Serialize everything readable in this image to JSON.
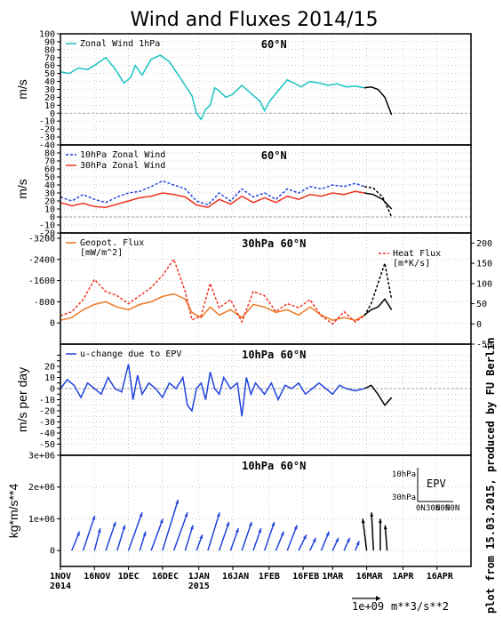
{
  "page": {
    "title": "Wind and Fluxes 2014/15",
    "credit": "plot from 15.03.2015, produced by FU Berlin"
  },
  "x_axis": {
    "ticks": [
      {
        "day": 0,
        "label": "1NOV",
        "label2": "2014"
      },
      {
        "day": 15,
        "label": "16NOV"
      },
      {
        "day": 30,
        "label": "1DEC"
      },
      {
        "day": 45,
        "label": "16DEC"
      },
      {
        "day": 61,
        "label": "1JAN",
        "label2": "2015"
      },
      {
        "day": 76,
        "label": "16JAN"
      },
      {
        "day": 92,
        "label": "1FEB"
      },
      {
        "day": 107,
        "label": "16FEB"
      },
      {
        "day": 120,
        "label": "1MAR"
      },
      {
        "day": 135,
        "label": "16MAR"
      },
      {
        "day": 151,
        "label": "1APR"
      },
      {
        "day": 166,
        "label": "16APR"
      }
    ],
    "range": [
      0,
      181
    ],
    "forecast_start_day": 134
  },
  "chart_data": [
    {
      "type": "line",
      "panel_label": "60°N",
      "ylabel": "m/s",
      "ylim": [
        -40,
        100
      ],
      "yticks": [
        -40,
        -30,
        -20,
        -10,
        0,
        10,
        20,
        30,
        40,
        50,
        60,
        70,
        80,
        90,
        100
      ],
      "ref_lines": [
        0
      ],
      "series": [
        {
          "name": "Zonal Wind 1hPa",
          "color": "#19c2c2",
          "x": [
            0,
            4,
            8,
            12,
            16,
            20,
            24,
            28,
            31,
            33,
            36,
            40,
            44,
            48,
            52,
            55,
            58,
            60,
            62,
            64,
            66,
            68,
            70,
            73,
            76,
            80,
            84,
            88,
            90,
            92,
            95,
            98,
            100,
            103,
            106,
            110,
            114,
            118,
            122,
            126,
            130,
            134
          ],
          "y": [
            52,
            50,
            57,
            55,
            62,
            70,
            56,
            38,
            45,
            60,
            48,
            68,
            73,
            65,
            48,
            35,
            22,
            0,
            -8,
            5,
            10,
            32,
            28,
            20,
            24,
            35,
            25,
            15,
            3,
            14,
            25,
            35,
            42,
            38,
            33,
            40,
            38,
            35,
            37,
            33,
            34,
            32
          ]
        },
        {
          "name": "",
          "color": "#000000",
          "dashed": false,
          "x": [
            134,
            137,
            140,
            143,
            146
          ],
          "y": [
            32,
            33,
            30,
            20,
            -2
          ]
        }
      ]
    },
    {
      "type": "line",
      "panel_label": "60°N",
      "ylabel": "m/s",
      "ylim": [
        -20,
        90
      ],
      "yticks": [
        -20,
        -10,
        0,
        10,
        20,
        30,
        40,
        50,
        60,
        70,
        80
      ],
      "ref_lines": [
        0
      ],
      "series": [
        {
          "name": "10hPa Zonal Wind",
          "color": "#2244dd",
          "dashed": true,
          "x": [
            0,
            5,
            10,
            15,
            20,
            25,
            30,
            35,
            40,
            45,
            50,
            55,
            60,
            65,
            70,
            75,
            80,
            85,
            90,
            95,
            100,
            105,
            110,
            115,
            120,
            125,
            130,
            134
          ],
          "y": [
            25,
            20,
            28,
            22,
            18,
            25,
            30,
            32,
            38,
            45,
            40,
            35,
            20,
            15,
            30,
            20,
            35,
            25,
            30,
            22,
            35,
            30,
            38,
            35,
            40,
            38,
            42,
            38
          ]
        },
        {
          "name": "30hPa Zonal Wind",
          "color": "#ee3322",
          "dashed": false,
          "x": [
            0,
            5,
            10,
            15,
            20,
            25,
            30,
            35,
            40,
            45,
            50,
            55,
            60,
            65,
            70,
            75,
            80,
            85,
            90,
            95,
            100,
            105,
            110,
            115,
            120,
            125,
            130,
            134
          ],
          "y": [
            18,
            14,
            17,
            13,
            12,
            16,
            20,
            24,
            26,
            30,
            28,
            25,
            15,
            12,
            22,
            16,
            26,
            18,
            24,
            18,
            26,
            22,
            28,
            26,
            30,
            28,
            32,
            30
          ]
        },
        {
          "name": "",
          "color": "#000000",
          "dashed": true,
          "x": [
            134,
            138,
            142,
            146
          ],
          "y": [
            38,
            36,
            25,
            0
          ]
        },
        {
          "name": "",
          "color": "#000000",
          "dashed": false,
          "x": [
            134,
            138,
            142,
            146
          ],
          "y": [
            30,
            28,
            22,
            10
          ]
        }
      ]
    },
    {
      "type": "line",
      "panel_label": "30hPa 60°N",
      "ylabel": "",
      "ylim": [
        -3400,
        800
      ],
      "yticks": [
        -3200,
        -2400,
        -1600,
        -800,
        0
      ],
      "yinvert": true,
      "y2lim": [
        -50,
        225
      ],
      "y2ticks": [
        -50,
        0,
        50,
        100,
        150,
        200
      ],
      "series": [
        {
          "name": "Geopot. Flux",
          "unit": "[mW/m^2]",
          "color": "#ee7722",
          "dashed": false,
          "x": [
            0,
            5,
            10,
            15,
            20,
            25,
            30,
            35,
            40,
            45,
            50,
            55,
            58,
            62,
            66,
            70,
            75,
            80,
            85,
            90,
            95,
            100,
            105,
            110,
            115,
            120,
            125,
            130,
            134
          ],
          "y": [
            -100,
            -200,
            -500,
            -700,
            -800,
            -600,
            -500,
            -700,
            -800,
            -1000,
            -1100,
            -900,
            -400,
            -200,
            -600,
            -300,
            -500,
            -200,
            -700,
            -600,
            -400,
            -500,
            -300,
            -600,
            -300,
            -100,
            -200,
            -100,
            -300
          ]
        },
        {
          "name": "Heat Flux",
          "unit": "[m*K/s]",
          "color": "#ee3322",
          "dashed": true,
          "x": [
            0,
            5,
            10,
            15,
            20,
            25,
            30,
            35,
            40,
            45,
            50,
            55,
            58,
            62,
            66,
            70,
            75,
            80,
            85,
            90,
            95,
            100,
            105,
            110,
            115,
            120,
            125,
            130,
            134
          ],
          "y": [
            20,
            30,
            60,
            110,
            80,
            70,
            50,
            70,
            90,
            120,
            160,
            80,
            10,
            20,
            100,
            40,
            60,
            5,
            80,
            70,
            30,
            50,
            40,
            60,
            20,
            0,
            30,
            5,
            20
          ]
        },
        {
          "name": "",
          "color": "#000000",
          "dashed": false,
          "x": [
            134,
            137,
            140,
            143,
            146
          ],
          "y": [
            -300,
            -500,
            -600,
            -900,
            -500
          ]
        },
        {
          "name": "",
          "color": "#000000",
          "dashed": true,
          "x": [
            134,
            137,
            140,
            143,
            146
          ],
          "y": [
            20,
            50,
            100,
            150,
            60
          ]
        }
      ]
    },
    {
      "type": "line",
      "panel_label": "10hPa 60°N",
      "ylabel": "m/s per day",
      "ylim": [
        -60,
        40
      ],
      "yticks": [
        -50,
        -45,
        -40,
        -35,
        -30,
        -25,
        -20,
        -15,
        -10,
        -5,
        0,
        5,
        10,
        15,
        20,
        25,
        30
      ],
      "ytick_labels": [
        -50,
        -40,
        -30,
        -20,
        -10,
        0,
        10,
        20
      ],
      "ref_lines": [
        0
      ],
      "series": [
        {
          "name": "u-change due to EPV",
          "color": "#2244dd",
          "dashed": false,
          "x": [
            0,
            3,
            6,
            9,
            12,
            15,
            18,
            21,
            24,
            27,
            30,
            32,
            34,
            36,
            39,
            42,
            45,
            48,
            51,
            54,
            56,
            58,
            60,
            62,
            64,
            66,
            68,
            70,
            72,
            75,
            78,
            80,
            82,
            84,
            86,
            88,
            90,
            93,
            96,
            99,
            102,
            105,
            108,
            111,
            114,
            117,
            120,
            123,
            126,
            130,
            134
          ],
          "y": [
            0,
            8,
            3,
            -8,
            5,
            0,
            -5,
            10,
            0,
            -3,
            22,
            -10,
            12,
            -5,
            5,
            0,
            -8,
            5,
            0,
            10,
            -15,
            -20,
            0,
            5,
            -10,
            15,
            0,
            -5,
            10,
            0,
            5,
            -25,
            10,
            -5,
            5,
            0,
            -5,
            5,
            -10,
            3,
            0,
            5,
            -5,
            0,
            5,
            0,
            -5,
            3,
            0,
            -2,
            0
          ]
        },
        {
          "name": "",
          "color": "#000000",
          "dashed": false,
          "x": [
            134,
            137,
            140,
            143,
            146
          ],
          "y": [
            0,
            3,
            -5,
            -15,
            -8
          ]
        }
      ]
    },
    {
      "type": "vector",
      "panel_label": "10hPa 60°N",
      "ylabel": "kg*m/s**4",
      "ylim": [
        -500000,
        3000000
      ],
      "yticks": [
        0,
        1000000,
        2000000,
        3000000
      ],
      "ytick_labels": [
        "0",
        "1e+06",
        "2e+06",
        "3e+06"
      ],
      "vector_scale_label": "1e+09",
      "vector_scale_unit": "m**3/s**2",
      "inset": {
        "title": "EPV",
        "y_labels": [
          "10hPa",
          "30hPa"
        ],
        "x_labels": [
          "0N",
          "30N",
          "60N",
          "90N"
        ]
      },
      "vectors": [
        {
          "day": 5,
          "u": 4,
          "v": 600000
        },
        {
          "day": 10,
          "u": 6,
          "v": 1100000
        },
        {
          "day": 15,
          "u": 3,
          "v": 700000
        },
        {
          "day": 20,
          "u": 5,
          "v": 900000
        },
        {
          "day": 25,
          "u": 4,
          "v": 800000
        },
        {
          "day": 30,
          "u": 7,
          "v": 1200000
        },
        {
          "day": 35,
          "u": 3,
          "v": 600000
        },
        {
          "day": 40,
          "u": 6,
          "v": 1000000
        },
        {
          "day": 45,
          "u": 8,
          "v": 1600000
        },
        {
          "day": 50,
          "u": 7,
          "v": 1200000
        },
        {
          "day": 55,
          "u": 4,
          "v": 800000
        },
        {
          "day": 60,
          "u": 3,
          "v": 500000
        },
        {
          "day": 65,
          "u": 6,
          "v": 1200000
        },
        {
          "day": 70,
          "u": 5,
          "v": 900000
        },
        {
          "day": 75,
          "u": 4,
          "v": 700000
        },
        {
          "day": 80,
          "u": 5,
          "v": 900000
        },
        {
          "day": 85,
          "u": 4,
          "v": 700000
        },
        {
          "day": 90,
          "u": 5,
          "v": 900000
        },
        {
          "day": 95,
          "u": 4,
          "v": 600000
        },
        {
          "day": 100,
          "u": 5,
          "v": 800000
        },
        {
          "day": 105,
          "u": 4,
          "v": 500000
        },
        {
          "day": 110,
          "u": 3,
          "v": 400000
        },
        {
          "day": 115,
          "u": 4,
          "v": 600000
        },
        {
          "day": 120,
          "u": 3,
          "v": 400000
        },
        {
          "day": 125,
          "u": 3,
          "v": 400000
        },
        {
          "day": 130,
          "u": 2,
          "v": 300000
        },
        {
          "day": 135,
          "u": -2,
          "v": 1000000,
          "forecast": true
        },
        {
          "day": 138,
          "u": -1,
          "v": 1200000,
          "forecast": true
        },
        {
          "day": 141,
          "u": 0,
          "v": 1000000,
          "forecast": true
        },
        {
          "day": 144,
          "u": -1,
          "v": 800000,
          "forecast": true
        }
      ]
    }
  ],
  "colors": {
    "frame": "#000000",
    "zero_line": "#888888",
    "grid": "#9a9a9a"
  }
}
